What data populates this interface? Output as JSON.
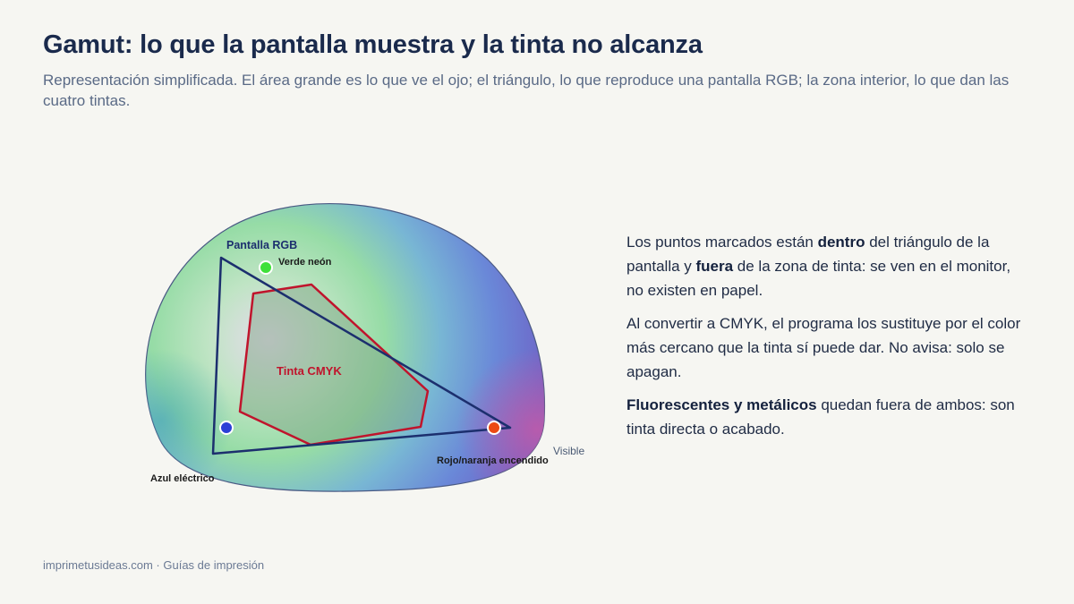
{
  "header": {
    "title": "Gamut: lo que la pantalla muestra y la tinta no alcanza",
    "subtitle": "Representación simplificada. El área grande es lo que ve el ojo; el triángulo, lo que reproduce una pantalla RGB; la zona interior, lo que dan las cuatro tintas."
  },
  "diagram": {
    "visible_label": "Visible",
    "rgb_label": "Pantalla RGB",
    "cmyk_label": "Tinta CMYK",
    "points": [
      {
        "name": "verde-neon",
        "label": "Verde neón",
        "color": "#3fe03a"
      },
      {
        "name": "azul-electrico",
        "label": "Azul eléctrico",
        "color": "#2b3fd6"
      },
      {
        "name": "rojo-naranja",
        "label": "Rojo/naranja encendido",
        "color": "#ec4a14"
      }
    ],
    "colors": {
      "rgb_stroke": "#1c2f6e",
      "cmyk_stroke": "#c0142c",
      "visible_stroke": "#4a5a84"
    }
  },
  "explanation": {
    "p1": {
      "t1": "Los puntos marcados están ",
      "b1": "dentro",
      "t2": " del triángulo de la pantalla y ",
      "b2": "fuera",
      "t3": " de la zona de tinta: se ven en el monitor, no existen en papel."
    },
    "p2": "Al convertir a CMYK, el programa los sustituye por el color más cercano que la tinta sí puede dar. No avisa: solo se apagan.",
    "p3": {
      "b1": "Fluorescentes y metálicos",
      "t1": " quedan fuera de ambos: son tinta directa o acabado."
    }
  },
  "footer": {
    "text": "imprimetusideas.com · Guías de impresión"
  }
}
